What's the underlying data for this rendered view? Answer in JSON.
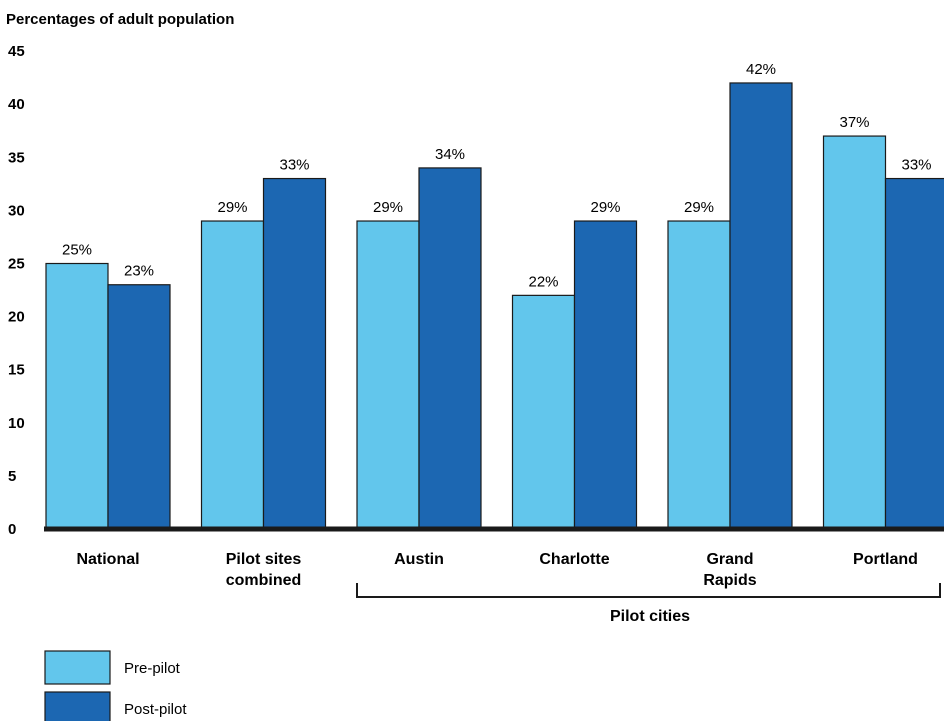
{
  "chart_data": {
    "type": "bar",
    "title": "Percentages of adult population",
    "ylabel": "Percentages of adult population",
    "ylim": [
      0,
      45
    ],
    "yticks": [
      0,
      5,
      10,
      15,
      20,
      25,
      30,
      35,
      40,
      45
    ],
    "categories": [
      [
        "National"
      ],
      [
        "Pilot sites",
        "combined"
      ],
      [
        "Austin"
      ],
      [
        "Charlotte"
      ],
      [
        "Grand",
        "Rapids"
      ],
      [
        "Portland"
      ]
    ],
    "series": [
      {
        "name": "Pre-pilot",
        "color": "#62c6ec",
        "values": [
          25,
          29,
          29,
          22,
          29,
          37
        ],
        "labels": [
          "25%",
          "29%",
          "29%",
          "22%",
          "29%",
          "37%"
        ]
      },
      {
        "name": "Post-pilot",
        "color": "#1c67b2",
        "values": [
          23,
          33,
          34,
          29,
          42,
          33
        ],
        "labels": [
          "23%",
          "33%",
          "34%",
          "29%",
          "42%",
          "33%"
        ]
      }
    ],
    "group_label": "Pilot cities",
    "legend_position": "bottom-left",
    "grid": false
  }
}
